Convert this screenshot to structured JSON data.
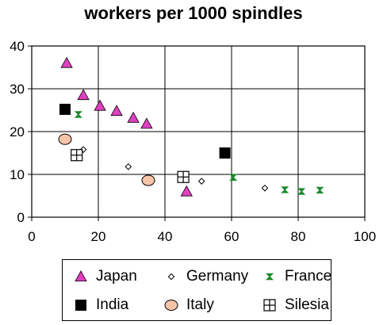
{
  "chart_data": {
    "type": "scatter",
    "title": "workers per 1000 spindles",
    "xlabel": "",
    "ylabel": "",
    "xlim": [
      0,
      100
    ],
    "ylim": [
      0,
      40
    ],
    "x_ticks": [
      0,
      20,
      40,
      60,
      80,
      100
    ],
    "y_ticks": [
      0,
      10,
      20,
      30,
      40
    ],
    "grid": true,
    "legend_position": "bottom",
    "series": [
      {
        "name": "Japan",
        "marker": "triangle",
        "color": "#e040c0",
        "points": [
          [
            10.5,
            36
          ],
          [
            15.5,
            28.5
          ],
          [
            20.5,
            26
          ],
          [
            25.5,
            24.8
          ],
          [
            30.5,
            23.2
          ],
          [
            34.5,
            21.8
          ],
          [
            46.5,
            6
          ]
        ]
      },
      {
        "name": "Germany",
        "marker": "diamond",
        "color": "#ffffff",
        "points": [
          [
            15.5,
            15.8
          ],
          [
            29,
            11.8
          ],
          [
            51,
            8.4
          ],
          [
            70,
            6.8
          ]
        ]
      },
      {
        "name": "France",
        "marker": "hourglass",
        "color": "#1a8a2a",
        "points": [
          [
            14,
            24
          ],
          [
            60.5,
            9.3
          ],
          [
            76,
            6.4
          ],
          [
            81,
            6
          ],
          [
            86.5,
            6.3
          ]
        ]
      },
      {
        "name": "India",
        "marker": "square",
        "color": "#000000",
        "points": [
          [
            10,
            25.2
          ],
          [
            58,
            15
          ]
        ]
      },
      {
        "name": "Italy",
        "marker": "circle",
        "color": "#f8c4a8",
        "points": [
          [
            10,
            18.2
          ],
          [
            35,
            8.6
          ]
        ]
      },
      {
        "name": "Silesia",
        "marker": "crossbox",
        "color": "#ffffff",
        "points": [
          [
            13.5,
            14.5
          ],
          [
            45.5,
            9.4
          ]
        ]
      }
    ]
  }
}
